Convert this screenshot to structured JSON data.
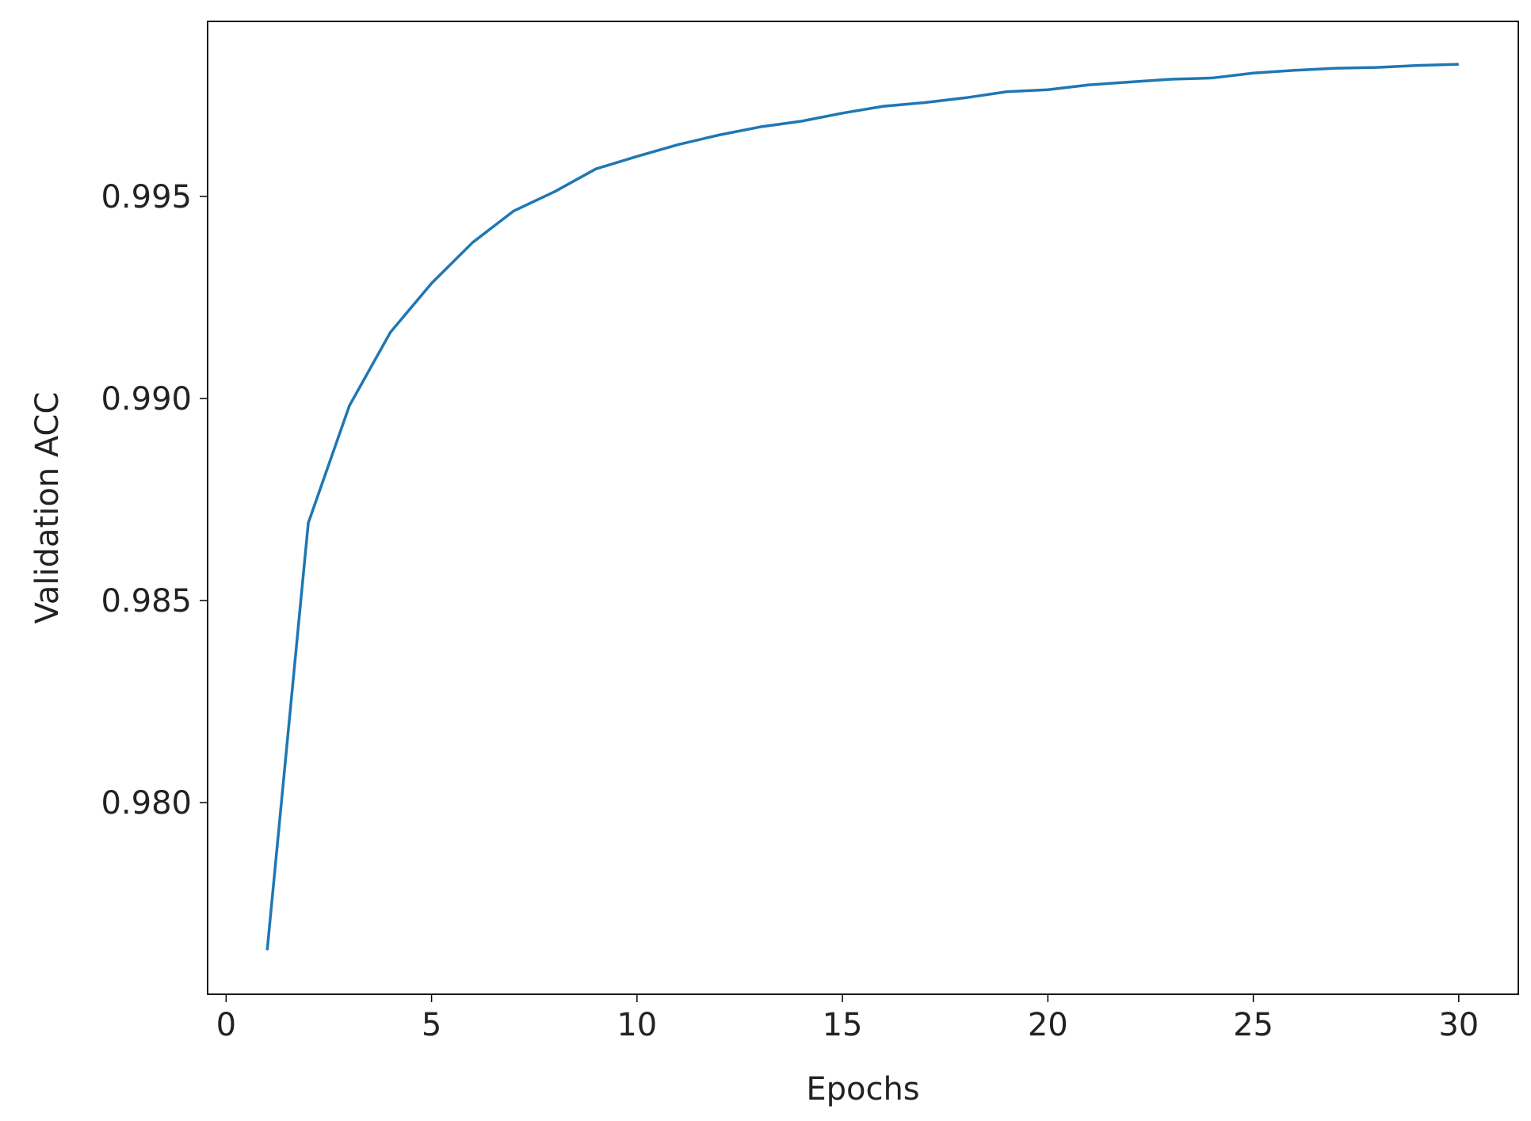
{
  "chart_data": {
    "type": "line",
    "x_label": "Epochs",
    "y_label": "Validation ACC",
    "x": [
      1,
      2,
      3,
      4,
      5,
      6,
      7,
      8,
      9,
      10,
      11,
      12,
      13,
      14,
      15,
      16,
      17,
      18,
      19,
      20,
      21,
      22,
      23,
      24,
      25,
      26,
      27,
      28,
      29,
      30
    ],
    "values": [
      0.97635,
      0.98692,
      0.98982,
      0.99164,
      0.99285,
      0.99386,
      0.99464,
      0.99512,
      0.99568,
      0.99599,
      0.99628,
      0.99652,
      0.99672,
      0.99686,
      0.99706,
      0.99723,
      0.99732,
      0.99744,
      0.99759,
      0.99764,
      0.99776,
      0.99783,
      0.9979,
      0.99793,
      0.99805,
      0.99812,
      0.99817,
      0.99819,
      0.99824,
      0.99827
    ],
    "color": "#1f77b4",
    "xlim": [
      -0.45,
      31.45
    ],
    "xticks": [
      0,
      5,
      10,
      15,
      20,
      25,
      30
    ],
    "ylim": [
      0.97526,
      0.99933
    ],
    "yticks": [
      {
        "value": 0.98,
        "label": "0.980"
      },
      0.985,
      {
        "value": 0.99,
        "label": "0.990"
      },
      0.995
    ],
    "grid": false
  }
}
